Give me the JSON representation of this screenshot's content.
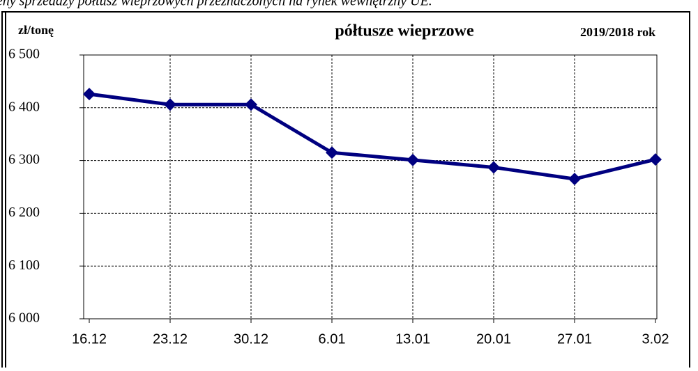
{
  "chart_data": {
    "type": "line",
    "caption": "ceny sprzedaży półtusz wieprzowych przeznaczonych na rynek wewnętrzny UE.",
    "title": "półtusze wieprzowe",
    "ylabel": "zł/tonę",
    "period": "2019/2018 rok",
    "categories": [
      "16.12",
      "23.12",
      "30.12",
      "6.01",
      "13.01",
      "20.01",
      "27.01",
      "3.02"
    ],
    "series": [
      {
        "name": "półtusze wieprzowe",
        "color": "#000080",
        "values": [
          6426,
          6406,
          6406,
          6315,
          6301,
          6287,
          6265,
          6302
        ]
      }
    ],
    "ylim": [
      6000,
      6500
    ],
    "yticks": [
      {
        "value": 6000,
        "label": "6 000"
      },
      {
        "value": 6100,
        "label": "6 100"
      },
      {
        "value": 6200,
        "label": "6 200"
      },
      {
        "value": 6300,
        "label": "6 300"
      },
      {
        "value": 6400,
        "label": "6 400"
      },
      {
        "value": 6500,
        "label": "6 500"
      }
    ],
    "grid": true
  }
}
